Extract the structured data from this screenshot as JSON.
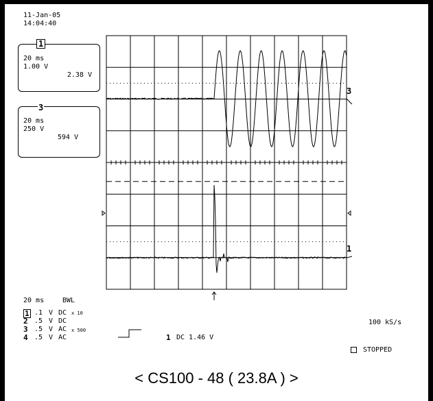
{
  "header": {
    "date": "11-Jan-05",
    "time": "14:04:40"
  },
  "channel_boxes": [
    {
      "num": "1",
      "timebase": "20 ms",
      "scale": "1.00 V",
      "reading": "2.38 V"
    },
    {
      "num": "3",
      "timebase": "20 ms",
      "scale": "250 V",
      "reading": "594 V"
    }
  ],
  "trace_markers": {
    "ch3": "3",
    "ch1": "1"
  },
  "settings": {
    "timebase": "20 ms",
    "bwl": "BWL",
    "channels": [
      {
        "num": "1",
        "scale": ".1",
        "unit": "V",
        "coupling": "DC",
        "probe": "x 10"
      },
      {
        "num": "2",
        "scale": ".5",
        "unit": "V",
        "coupling": "DC",
        "probe": ""
      },
      {
        "num": "3",
        "scale": ".5",
        "unit": "V",
        "coupling": "AC",
        "probe": "x 500"
      },
      {
        "num": "4",
        "scale": ".5",
        "unit": "V",
        "coupling": "AC",
        "probe": ""
      }
    ],
    "trigger": {
      "channel": "1",
      "level": "DC 1.46 V"
    },
    "sample_rate": "100 kS/s",
    "status": "STOPPED"
  },
  "caption": "< CS100 - 48  ( 23.8A ) >",
  "colors": {
    "trace": "#000000",
    "grid": "#000000"
  }
}
